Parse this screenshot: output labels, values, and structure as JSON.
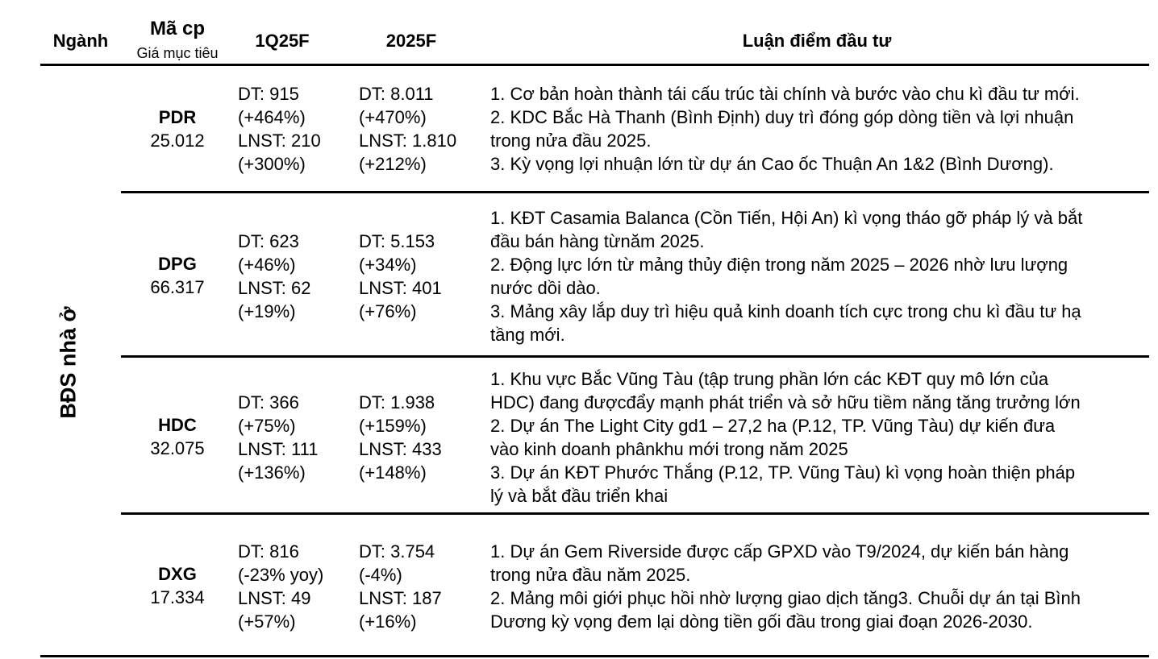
{
  "header": {
    "sector": "Ngành",
    "ticker": "Mã cp",
    "target_price": "Giá mục tiêu",
    "q1": "1Q25F",
    "fy": "2025F",
    "thesis": "Luận điểm đầu tư"
  },
  "sector_label": "BĐS nhà ở",
  "rows": [
    {
      "ticker": "PDR",
      "price": "25.012",
      "q1": [
        "DT: 915",
        "(+464%)",
        "LNST: 210",
        "(+300%)"
      ],
      "fy": [
        "DT: 8.011",
        "(+470%)",
        "LNST: 1.810",
        "(+212%)"
      ],
      "thesis": [
        "1. Cơ bản hoàn thành tái cấu trúc tài chính và bước vào chu kì đầu tư mới.",
        "2. KDC Bắc Hà Thanh (Bình Định) duy trì đóng góp dòng tiền và lợi nhuận",
        "trong nửa đầu 2025.",
        "3. Kỳ vọng lợi nhuận lớn từ dự án Cao ốc Thuận An 1&2 (Bình Dương)."
      ]
    },
    {
      "ticker": "DPG",
      "price": "66.317",
      "q1": [
        "DT: 623",
        "(+46%)",
        "LNST: 62",
        "(+19%)"
      ],
      "fy": [
        "DT: 5.153",
        "(+34%)",
        "LNST: 401",
        "(+76%)"
      ],
      "thesis": [
        "1. KĐT Casamia Balanca (Cồn Tiến, Hội An) kì vọng tháo gỡ pháp lý và bắt",
        "đầu bán hàng từnăm 2025.",
        "2. Động lực lớn từ mảng thủy điện trong năm 2025 – 2026 nhờ lưu lượng",
        "nước dồi dào.",
        "3. Mảng xây lắp duy trì hiệu quả kinh doanh tích cực trong chu kì đầu tư hạ",
        "tầng mới."
      ]
    },
    {
      "ticker": "HDC",
      "price": "32.075",
      "q1": [
        "DT: 366",
        "(+75%)",
        "LNST: 111",
        "(+136%)"
      ],
      "fy": [
        "DT: 1.938",
        "(+159%)",
        "LNST: 433",
        "(+148%)"
      ],
      "thesis": [
        "1. Khu vực Bắc Vũng Tàu (tập trung phần lớn các KĐT quy mô lớn của",
        "HDC) đang đượcđẩy mạnh phát triển và sở hữu tiềm năng tăng trưởng lớn",
        "2. Dự án The Light City gd1 – 27,2 ha (P.12, TP. Vũng Tàu) dự kiến đưa",
        "vào kinh doanh phânkhu mới trong năm 2025",
        "3. Dự án KĐT Phước Thắng (P.12, TP. Vũng Tàu) kì vọng hoàn thiện pháp",
        "lý và bắt đầu triển khai"
      ]
    },
    {
      "ticker": "DXG",
      "price": "17.334",
      "q1": [
        "DT: 816",
        "(-23% yoy)",
        "LNST: 49",
        "(+57%)"
      ],
      "fy": [
        "DT: 3.754",
        "(-4%)",
        "LNST: 187",
        "(+16%)"
      ],
      "thesis": [
        "1. Dự án Gem Riverside được cấp GPXD vào T9/2024, dự kiến bán hàng",
        "trong nửa đầu năm 2025.",
        "2. Mảng môi giới phục hồi nhờ lượng giao dịch tăng3. Chuỗi dự án tại Bình",
        "Dương kỳ vọng đem lại dòng tiền gối đầu trong giai đoạn 2026-2030."
      ]
    }
  ]
}
